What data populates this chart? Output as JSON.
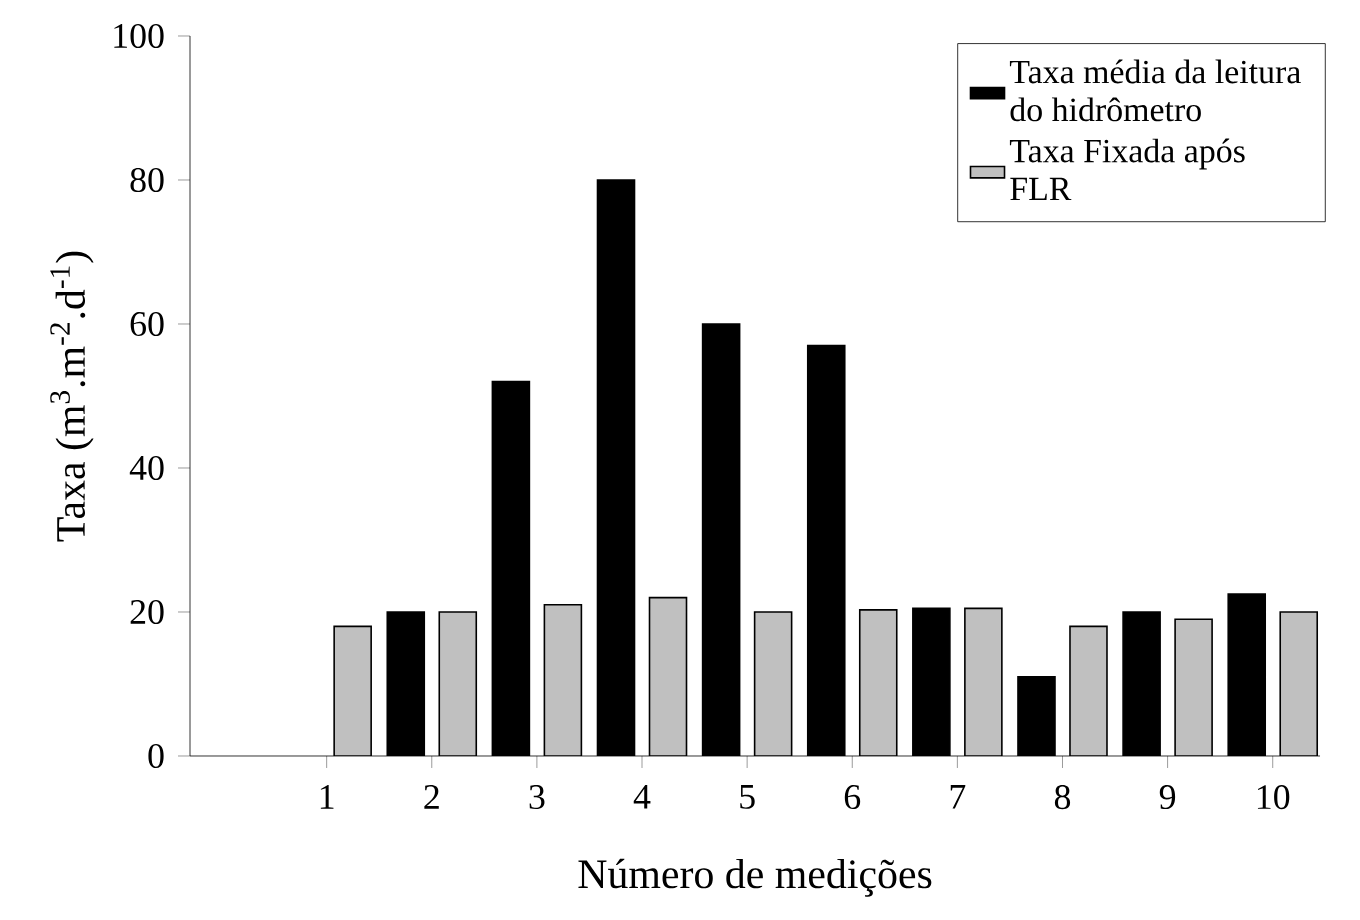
{
  "chart_data": {
    "type": "bar",
    "xlabel": "Número de medições",
    "ylabel": "Taxa (m$^{3}$.m$^{-2}$.d$^{-1}$)",
    "categories": [
      "1",
      "2",
      "3",
      "4",
      "5",
      "6",
      "7",
      "8",
      "9",
      "10"
    ],
    "series": [
      {
        "name": "Taxa média da leitura do hidrômetro",
        "color": "#000000",
        "values": [
          null,
          20,
          52,
          80,
          60,
          57,
          20.5,
          11,
          20,
          22.5
        ]
      },
      {
        "name": "Taxa Fixada após FLR",
        "color": "#c0c0c0",
        "values": [
          18,
          20,
          21,
          22,
          20,
          20.3,
          20.5,
          18,
          19,
          20
        ]
      }
    ],
    "ylim": [
      0,
      100
    ],
    "yticks": [
      0,
      20,
      40,
      60,
      80,
      100
    ],
    "grid": false,
    "legend": "top right"
  }
}
